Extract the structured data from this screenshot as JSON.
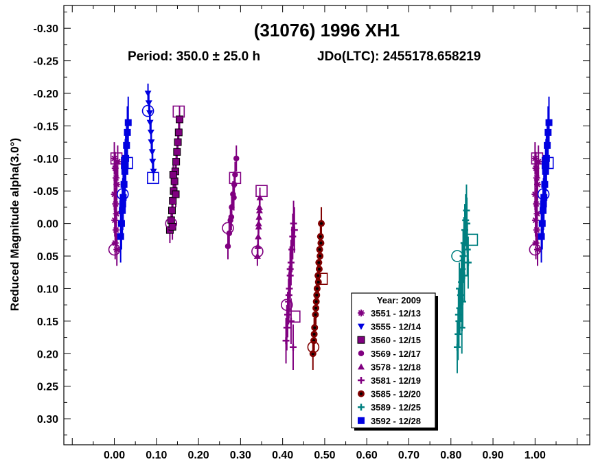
{
  "chart_data": {
    "type": "scatter",
    "title": "(31076) 1996 XH1",
    "subtitle_period": "Period: 350.0 ± 25.0 h",
    "subtitle_epoch": "JDo(LTC): 2455178.658219",
    "ylabel": "Reduced Magnitude alpha(3.0°)",
    "xlabel": "",
    "xlim": [
      -0.12,
      1.13
    ],
    "ylim": [
      0.34,
      -0.335
    ],
    "x_ticks": [
      "0.00",
      "0.10",
      "0.20",
      "0.30",
      "0.40",
      "0.50",
      "0.60",
      "0.70",
      "0.80",
      "0.90",
      "1.00"
    ],
    "y_ticks": [
      "-0.30",
      "-0.25",
      "-0.20",
      "-0.15",
      "-0.10",
      "-0.05",
      "0.00",
      "0.05",
      "0.10",
      "0.15",
      "0.20",
      "0.25",
      "0.30"
    ],
    "y_inverted": true,
    "grid": false,
    "legend_placement": "bottom-center",
    "legend_title": "Year: 2009",
    "series": [
      {
        "name": "3551 - 12/13",
        "color": "#800080",
        "marker": "asterisk",
        "points": [
          [
            0.0,
            -0.1
          ],
          [
            0.002,
            -0.085
          ],
          [
            0.004,
            -0.07
          ],
          [
            0.0,
            -0.045
          ],
          [
            0.003,
            -0.03
          ],
          [
            0.005,
            -0.015
          ],
          [
            0.001,
            -0.005
          ],
          [
            0.004,
            0.01
          ],
          [
            0.002,
            0.03
          ],
          [
            0.006,
            0.04
          ],
          [
            0.008,
            -0.095
          ],
          [
            0.006,
            -0.06
          ]
        ],
        "err": 0.025,
        "start": [
          0.0,
          0.04
        ],
        "end": [
          0.005,
          -0.1
        ]
      },
      {
        "name": "3555 - 12/14",
        "color": "#0000e0",
        "marker": "triangle-down",
        "points": [
          [
            0.08,
            -0.2
          ],
          [
            0.082,
            -0.185
          ],
          [
            0.084,
            -0.17
          ],
          [
            0.085,
            -0.155
          ],
          [
            0.087,
            -0.14
          ],
          [
            0.088,
            -0.125
          ],
          [
            0.09,
            -0.11
          ],
          [
            0.091,
            -0.095
          ],
          [
            0.093,
            -0.08
          ]
        ],
        "err": 0.015,
        "start": [
          0.08,
          -0.173
        ],
        "end": [
          0.092,
          -0.07
        ]
      },
      {
        "name": "3560 - 12/15",
        "color": "#800080",
        "marker": "square-black",
        "points": [
          [
            0.132,
            0.01
          ],
          [
            0.135,
            -0.005
          ],
          [
            0.137,
            -0.02
          ],
          [
            0.139,
            -0.035
          ],
          [
            0.141,
            -0.05
          ],
          [
            0.143,
            -0.065
          ],
          [
            0.145,
            -0.08
          ],
          [
            0.147,
            -0.095
          ],
          [
            0.149,
            -0.11
          ],
          [
            0.151,
            -0.125
          ],
          [
            0.153,
            -0.14
          ],
          [
            0.155,
            -0.16
          ],
          [
            0.14,
            -0.075
          ],
          [
            0.146,
            -0.045
          ],
          [
            0.138,
            0.005
          ]
        ],
        "err": 0.02,
        "start": [
          0.135,
          0.0
        ],
        "end": [
          0.153,
          -0.172
        ]
      },
      {
        "name": "3569 - 12/17",
        "color": "#800080",
        "marker": "circle",
        "points": [
          [
            0.27,
            0.035
          ],
          [
            0.273,
            0.015
          ],
          [
            0.276,
            -0.005
          ],
          [
            0.279,
            -0.025
          ],
          [
            0.282,
            -0.045
          ],
          [
            0.285,
            -0.06
          ],
          [
            0.287,
            -0.075
          ],
          [
            0.29,
            -0.1
          ],
          [
            0.278,
            -0.01
          ],
          [
            0.284,
            -0.04
          ]
        ],
        "err": 0.02,
        "start": [
          0.27,
          0.007
        ],
        "end": [
          0.287,
          -0.07
        ]
      },
      {
        "name": "3578 - 12/18",
        "color": "#800080",
        "marker": "triangle-up",
        "points": [
          [
            0.34,
            0.05
          ],
          [
            0.341,
            0.035
          ],
          [
            0.342,
            0.02
          ],
          [
            0.343,
            0.005
          ],
          [
            0.344,
            -0.01
          ],
          [
            0.345,
            -0.025
          ],
          [
            0.346,
            -0.04
          ],
          [
            0.343,
            0.0
          ],
          [
            0.345,
            -0.02
          ]
        ],
        "err": 0.015,
        "start": [
          0.34,
          0.043
        ],
        "end": [
          0.35,
          -0.05
        ]
      },
      {
        "name": "3581 - 12/19",
        "color": "#800080",
        "marker": "plus",
        "points": [
          [
            0.408,
            0.18
          ],
          [
            0.41,
            0.16
          ],
          [
            0.412,
            0.14
          ],
          [
            0.414,
            0.12
          ],
          [
            0.416,
            0.1
          ],
          [
            0.418,
            0.08
          ],
          [
            0.42,
            0.06
          ],
          [
            0.422,
            0.04
          ],
          [
            0.424,
            0.02
          ],
          [
            0.426,
            0.0
          ],
          [
            0.415,
            0.11
          ],
          [
            0.42,
            0.15
          ],
          [
            0.418,
            0.07
          ],
          [
            0.425,
            0.19
          ],
          [
            0.428,
            0.01
          ]
        ],
        "err": 0.035,
        "start": [
          0.41,
          0.125
        ],
        "end": [
          0.428,
          0.143
        ]
      },
      {
        "name": "3585 - 12/20",
        "color": "#800000",
        "marker": "diamond-dot",
        "points": [
          [
            0.472,
            0.2
          ],
          [
            0.474,
            0.18
          ],
          [
            0.476,
            0.16
          ],
          [
            0.478,
            0.14
          ],
          [
            0.48,
            0.12
          ],
          [
            0.482,
            0.1
          ],
          [
            0.484,
            0.08
          ],
          [
            0.486,
            0.06
          ],
          [
            0.488,
            0.04
          ],
          [
            0.49,
            0.02
          ],
          [
            0.492,
            0.0
          ],
          [
            0.479,
            0.13
          ],
          [
            0.485,
            0.09
          ],
          [
            0.475,
            0.17
          ],
          [
            0.489,
            0.05
          ],
          [
            0.481,
            0.11
          ],
          [
            0.487,
            0.07
          ],
          [
            0.491,
            0.03
          ]
        ],
        "err": 0.025,
        "start": [
          0.473,
          0.19
        ],
        "end": [
          0.493,
          0.085
        ]
      },
      {
        "name": "3589 - 12/25",
        "color": "#008080",
        "marker": "plus",
        "points": [
          [
            0.815,
            0.19
          ],
          [
            0.817,
            0.17
          ],
          [
            0.819,
            0.15
          ],
          [
            0.821,
            0.13
          ],
          [
            0.823,
            0.11
          ],
          [
            0.825,
            0.09
          ],
          [
            0.827,
            0.07
          ],
          [
            0.829,
            0.05
          ],
          [
            0.831,
            0.03
          ],
          [
            0.833,
            0.01
          ],
          [
            0.835,
            -0.005
          ],
          [
            0.837,
            -0.02
          ],
          [
            0.839,
            0.04
          ],
          [
            0.841,
            0.06
          ],
          [
            0.82,
            0.1
          ],
          [
            0.826,
            0.16
          ],
          [
            0.832,
            0.08
          ],
          [
            0.838,
            0.0
          ],
          [
            0.828,
            0.12
          ],
          [
            0.818,
            0.14
          ]
        ],
        "err": 0.04,
        "start": [
          0.815,
          0.05
        ],
        "end": [
          0.85,
          0.025
        ]
      },
      {
        "name": "3592 - 12/28",
        "color": "#0000e0",
        "marker": "square",
        "points": [
          [
            0.015,
            0.02
          ],
          [
            0.017,
            0.0
          ],
          [
            0.019,
            -0.02
          ],
          [
            0.021,
            -0.04
          ],
          [
            0.023,
            -0.06
          ],
          [
            0.025,
            -0.08
          ],
          [
            0.027,
            -0.1
          ],
          [
            0.029,
            -0.12
          ],
          [
            0.031,
            -0.14
          ],
          [
            0.033,
            -0.155
          ],
          [
            0.02,
            -0.03
          ],
          [
            0.026,
            -0.09
          ]
        ],
        "err": 0.04,
        "start": [
          0.02,
          -0.045
        ],
        "end": [
          0.03,
          -0.093
        ]
      }
    ],
    "repeat_phase_offset": 1.0,
    "repeat_series": [
      "3551 - 12/13",
      "3592 - 12/28"
    ]
  }
}
